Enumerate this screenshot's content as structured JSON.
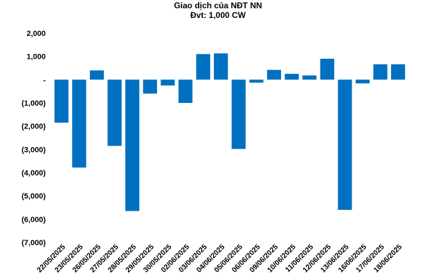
{
  "chart_data": {
    "type": "bar",
    "title": "Giao dịch của NĐT NN",
    "subtitle": "Đvt: 1,000 CW",
    "xlabel": "",
    "ylabel": "",
    "ylim": [
      -7000,
      2000
    ],
    "yticks": [
      2000,
      1000,
      0,
      -1000,
      -2000,
      -3000,
      -4000,
      -5000,
      -6000,
      -7000
    ],
    "ytick_labels": [
      "2,000",
      "1,000",
      "-",
      "(1,000)",
      "(2,000)",
      "(3,000)",
      "(4,000)",
      "(5,000)",
      "(6,000)",
      "(7,000)"
    ],
    "grid": false,
    "legend": "none",
    "bar_color": "#0070C0",
    "categories": [
      "22/05/2025",
      "23/05/2025",
      "26/05/2025",
      "27/05/2025",
      "28/05/2025",
      "29/05/2025",
      "30/05/2025",
      "02/06/2025",
      "03/06/2025",
      "04/06/2025",
      "05/06/2025",
      "06/06/2025",
      "09/06/2025",
      "10/06/2025",
      "11/06/2025",
      "12/06/2025",
      "13/06/2025",
      "16/06/2025",
      "17/06/2025",
      "18/06/2025"
    ],
    "values": [
      -1850,
      -3780,
      400,
      -2850,
      -5650,
      -600,
      -250,
      -1000,
      1100,
      1130,
      -2980,
      -130,
      420,
      250,
      180,
      900,
      -5600,
      -160,
      660,
      660
    ]
  }
}
